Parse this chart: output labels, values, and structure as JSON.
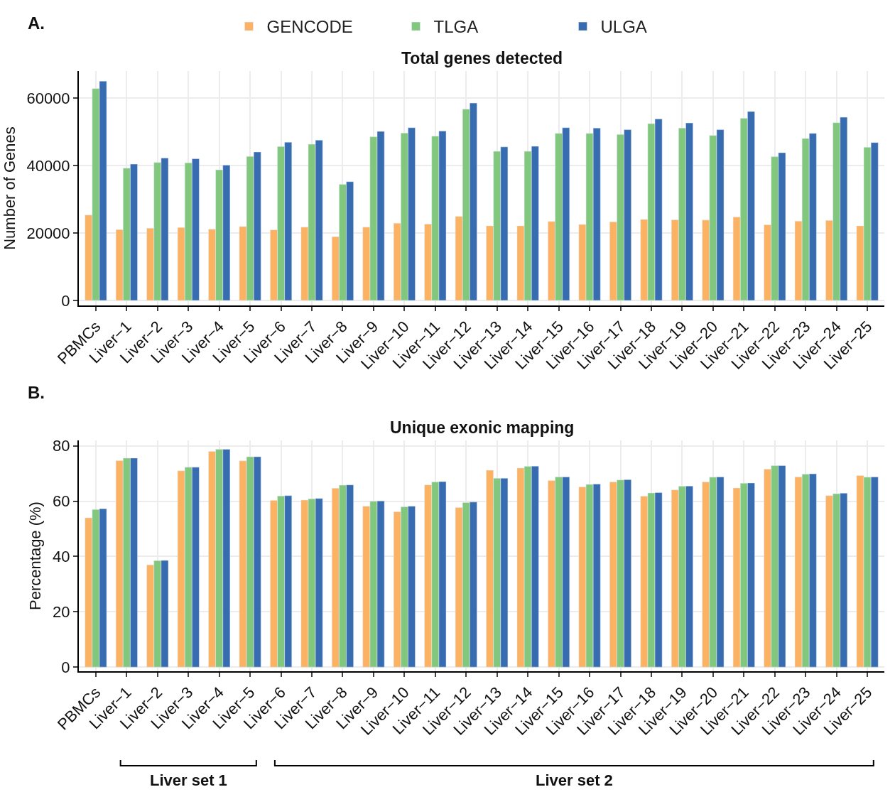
{
  "chart_data": [
    {
      "type": "bar",
      "title": "Total genes detected",
      "ylabel": "Number of Genes",
      "annotations": [
        "A."
      ],
      "legend": "top",
      "grid": true,
      "categories": [
        "PBMCs",
        "Liver−1",
        "Liver−2",
        "Liver−3",
        "Liver−4",
        "Liver−5",
        "Liver−6",
        "Liver−7",
        "Liver−8",
        "Liver−9",
        "Liver−10",
        "Liver−11",
        "Liver−12",
        "Liver−13",
        "Liver−14",
        "Liver−15",
        "Liver−16",
        "Liver−17",
        "Liver−18",
        "Liver−19",
        "Liver−20",
        "Liver−21",
        "Liver−22",
        "Liver−23",
        "Liver−24",
        "Liver−25"
      ],
      "ylim": [
        -1500,
        68000
      ],
      "yticks": [
        0,
        20000,
        40000,
        60000
      ],
      "series": [
        {
          "name": "GENCODE",
          "color": "#fbb262",
          "values": [
            25300,
            21000,
            21400,
            21600,
            21100,
            21900,
            20900,
            21700,
            18900,
            21700,
            22900,
            22600,
            24900,
            22100,
            22100,
            23400,
            22500,
            23300,
            24000,
            23900,
            23800,
            24700,
            22400,
            23500,
            23700,
            22100
          ]
        },
        {
          "name": "TLGA",
          "color": "#82c77e",
          "values": [
            62800,
            39200,
            40900,
            40800,
            38700,
            42700,
            45600,
            46300,
            34400,
            48500,
            49600,
            48700,
            56700,
            44200,
            44200,
            49500,
            49500,
            49200,
            52400,
            51100,
            48900,
            54000,
            42600,
            48000,
            52700,
            45400
          ]
        },
        {
          "name": "ULGA",
          "color": "#386cb0",
          "values": [
            65000,
            40400,
            42200,
            42000,
            40100,
            44000,
            46900,
            47500,
            35200,
            50100,
            51200,
            50200,
            58500,
            45500,
            45700,
            51200,
            51100,
            50600,
            53800,
            52600,
            50600,
            56000,
            43800,
            49500,
            54300,
            46800
          ]
        }
      ]
    },
    {
      "type": "bar",
      "title": "Unique exonic mapping",
      "ylabel": "Percentage (%)",
      "annotations": [
        "B.",
        "Liver set 1",
        "Liver set 2"
      ],
      "grid": true,
      "categories": [
        "PBMCs",
        "Liver−1",
        "Liver−2",
        "Liver−3",
        "Liver−4",
        "Liver−5",
        "Liver−6",
        "Liver−7",
        "Liver−8",
        "Liver−9",
        "Liver−10",
        "Liver−11",
        "Liver−12",
        "Liver−13",
        "Liver−14",
        "Liver−15",
        "Liver−16",
        "Liver−17",
        "Liver−18",
        "Liver−19",
        "Liver−20",
        "Liver−21",
        "Liver−22",
        "Liver−23",
        "Liver−24",
        "Liver−25"
      ],
      "ylim": [
        -1.5,
        82
      ],
      "yticks": [
        0,
        20,
        40,
        60,
        80
      ],
      "series": [
        {
          "color": "#fbb262",
          "values": [
            54,
            74.7,
            37,
            71,
            78,
            74.6,
            60.3,
            60.4,
            64.7,
            58.2,
            56.2,
            65.9,
            57.7,
            71.2,
            72,
            67.5,
            65.2,
            67,
            61.8,
            64.1,
            67,
            64.8,
            71.6,
            68.8,
            62,
            69.3
          ]
        },
        {
          "color": "#82c77e",
          "values": [
            57,
            75.6,
            38.5,
            72.3,
            78.8,
            76.1,
            61.9,
            60.9,
            65.8,
            60,
            58,
            67,
            59.5,
            68.3,
            72.6,
            68.8,
            66.1,
            67.7,
            63,
            65.4,
            68.7,
            66.5,
            72.9,
            69.8,
            62.7,
            68.7
          ]
        },
        {
          "color": "#386cb0",
          "values": [
            57.3,
            75.6,
            38.6,
            72.3,
            78.8,
            76.1,
            62,
            61,
            65.9,
            60.1,
            58.2,
            67.1,
            59.7,
            68.3,
            72.7,
            68.8,
            66.2,
            67.8,
            63.1,
            65.5,
            68.8,
            66.6,
            72.9,
            69.9,
            62.9,
            68.8
          ]
        }
      ]
    }
  ]
}
